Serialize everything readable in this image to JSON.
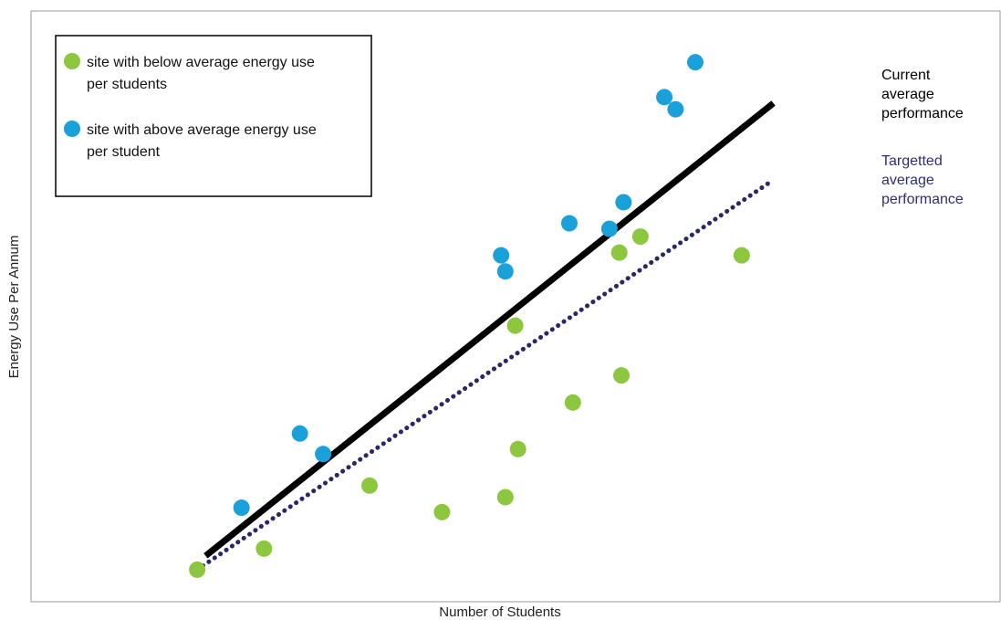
{
  "chart_data": {
    "type": "scatter",
    "xlabel": "Number of Students",
    "ylabel": "Energy Use Per Annum",
    "xlim": [
      0,
      100
    ],
    "ylim": [
      0,
      100
    ],
    "ticks_shown": false,
    "grid": false,
    "legend_position": "top-left",
    "series": [
      {
        "name": "site with below average energy use per students",
        "color": "#8DC63F",
        "marker": "circle",
        "points": [
          {
            "x": 10.0,
            "y": 2.0
          },
          {
            "x": 19.5,
            "y": 5.8
          },
          {
            "x": 34.5,
            "y": 17.2
          },
          {
            "x": 44.8,
            "y": 12.4
          },
          {
            "x": 53.8,
            "y": 15.1
          },
          {
            "x": 55.6,
            "y": 23.8
          },
          {
            "x": 55.2,
            "y": 46.1
          },
          {
            "x": 63.4,
            "y": 32.2
          },
          {
            "x": 70.3,
            "y": 37.1
          },
          {
            "x": 70.0,
            "y": 59.3
          },
          {
            "x": 73.0,
            "y": 62.2
          },
          {
            "x": 87.4,
            "y": 58.8
          }
        ]
      },
      {
        "name": "site with above average energy use per student",
        "color": "#1BA1D9",
        "marker": "circle",
        "points": [
          {
            "x": 16.3,
            "y": 13.2
          },
          {
            "x": 24.6,
            "y": 26.6
          },
          {
            "x": 27.9,
            "y": 22.9
          },
          {
            "x": 53.2,
            "y": 58.8
          },
          {
            "x": 53.8,
            "y": 55.9
          },
          {
            "x": 62.9,
            "y": 64.6
          },
          {
            "x": 68.6,
            "y": 63.6
          },
          {
            "x": 70.6,
            "y": 68.4
          },
          {
            "x": 76.4,
            "y": 87.4
          },
          {
            "x": 78.0,
            "y": 85.2
          },
          {
            "x": 80.8,
            "y": 93.7
          }
        ]
      }
    ],
    "lines": [
      {
        "name": "Current average performance",
        "style": "solid",
        "color": "#000000",
        "x": [
          11.2,
          91.9
        ],
        "y": [
          4.5,
          86.3
        ]
      },
      {
        "name": "Targetted average performance",
        "style": "dotted",
        "color": "#282866",
        "x": [
          10.0,
          91.5
        ],
        "y": [
          2.0,
          72.1
        ]
      }
    ],
    "annotations": [
      {
        "lines": [
          "Current",
          "average",
          "performance"
        ],
        "color": "#000000"
      },
      {
        "lines": [
          "Targetted",
          "average",
          "performance"
        ],
        "color": "#2E2E7A"
      }
    ],
    "legend": [
      {
        "lines": [
          "site with below average energy use",
          "per students"
        ],
        "color": "#8DC63F"
      },
      {
        "lines": [
          "site with above average energy use",
          "per student"
        ],
        "color": "#1BA1D9"
      }
    ]
  }
}
